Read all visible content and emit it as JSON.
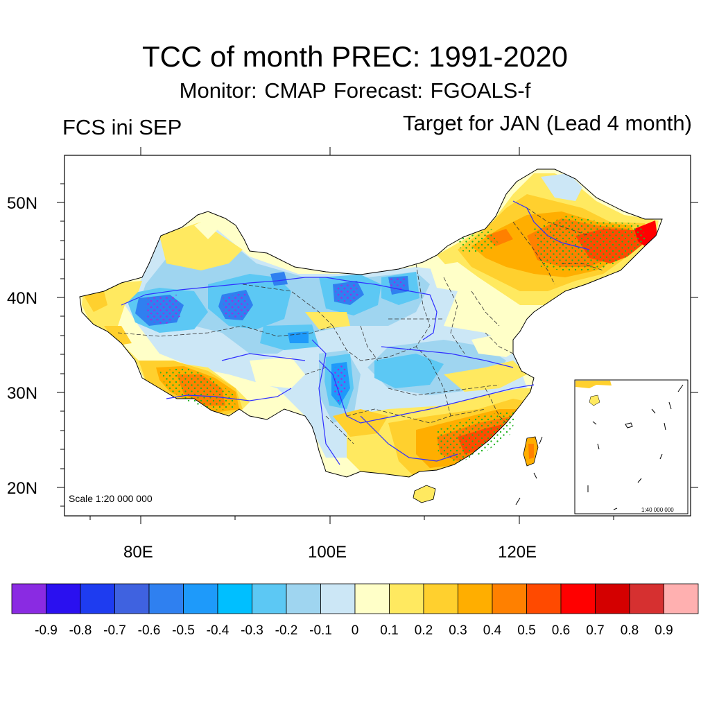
{
  "title": "TCC of month PREC: 1991-2020",
  "subtitle": "Monitor: CMAP   Forecast: FGOALS-f",
  "left_label": "FCS ini SEP",
  "right_label": "Target for JAN (Lead 4 month)",
  "lat_ticks": [
    "50N",
    "40N",
    "30N",
    "20N"
  ],
  "lon_ticks": [
    "80E",
    "100E",
    "120E"
  ],
  "scale_main": "Scale 1:20 000 000",
  "scale_inset": "1:40 000 000",
  "colorbar": {
    "colors": [
      "#8A2BE2",
      "#2A10F0",
      "#1E3CF0",
      "#3F62E0",
      "#2F80F0",
      "#1E9AFA",
      "#00BFFF",
      "#5CC8F4",
      "#9FD5F0",
      "#CCE7F6",
      "#FFFFC8",
      "#FFE960",
      "#FFD02E",
      "#FFAE00",
      "#FF8000",
      "#FF4A00",
      "#FF0000",
      "#D40000",
      "#D63030",
      "#FFB0B0"
    ],
    "labels": [
      "-0.9",
      "-0.8",
      "-0.7",
      "-0.6",
      "-0.5",
      "-0.4",
      "-0.3",
      "-0.2",
      "-0.1",
      "0",
      "0.1",
      "0.2",
      "0.3",
      "0.4",
      "0.5",
      "0.6",
      "0.7",
      "0.8",
      "0.9"
    ]
  }
}
